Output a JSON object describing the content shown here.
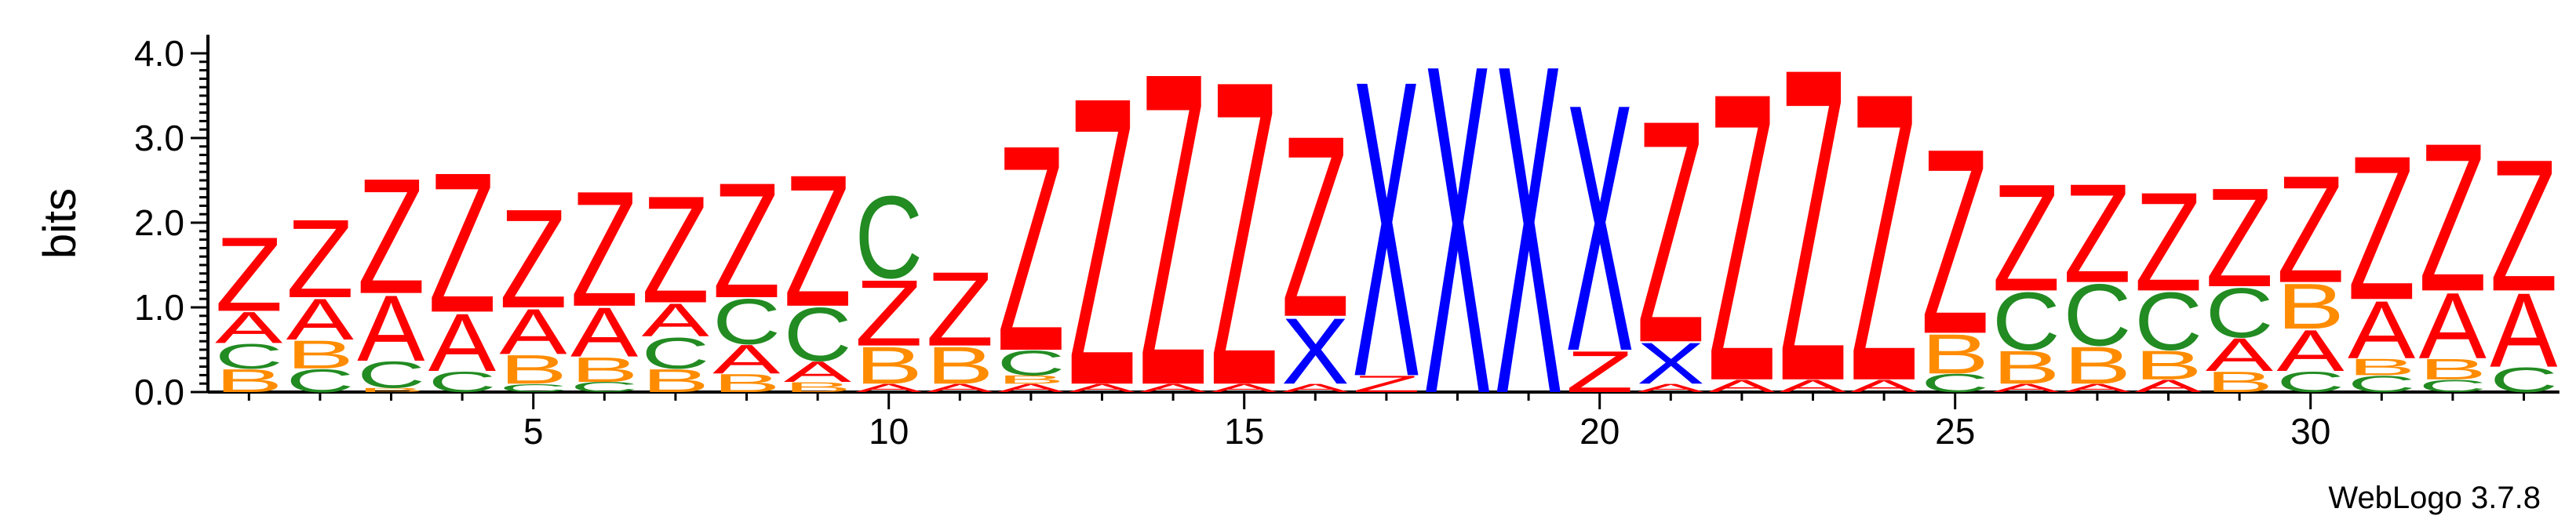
{
  "colors": {
    "A": "#ff0000",
    "Z": "#ff0000",
    "B": "#ff8c00",
    "C": "#228b22",
    "X": "#0000ff"
  },
  "credit": "WebLogo 3.7.8",
  "chart_data": {
    "type": "sequence-logo",
    "ylabel": "bits",
    "ylim": [
      0,
      4.2
    ],
    "y_ticks": [
      "0.0",
      "1.0",
      "2.0",
      "3.0",
      "4.0"
    ],
    "x_tick_labels": [
      "5",
      "10",
      "15",
      "20",
      "25",
      "30"
    ],
    "positions": [
      {
        "pos": 1,
        "stack": [
          [
            "B",
            0.28
          ],
          [
            "C",
            0.3
          ],
          [
            "A",
            0.38
          ],
          [
            "Z",
            0.9
          ]
        ]
      },
      {
        "pos": 2,
        "stack": [
          [
            "C",
            0.28
          ],
          [
            "B",
            0.34
          ],
          [
            "A",
            0.5
          ],
          [
            "Z",
            0.95
          ]
        ]
      },
      {
        "pos": 3,
        "stack": [
          [
            "B",
            0.05
          ],
          [
            "C",
            0.32
          ],
          [
            "A",
            0.8
          ],
          [
            "Z",
            1.4
          ]
        ]
      },
      {
        "pos": 4,
        "stack": [
          [
            "C",
            0.25
          ],
          [
            "A",
            0.7
          ],
          [
            "Z",
            1.7
          ]
        ]
      },
      {
        "pos": 5,
        "stack": [
          [
            "C",
            0.1
          ],
          [
            "B",
            0.35
          ],
          [
            "A",
            0.55
          ],
          [
            "Z",
            1.2
          ]
        ]
      },
      {
        "pos": 6,
        "stack": [
          [
            "C",
            0.12
          ],
          [
            "B",
            0.3
          ],
          [
            "A",
            0.6
          ],
          [
            "Z",
            1.4
          ]
        ]
      },
      {
        "pos": 7,
        "stack": [
          [
            "B",
            0.28
          ],
          [
            "C",
            0.38
          ],
          [
            "A",
            0.4
          ],
          [
            "Z",
            1.3
          ]
        ]
      },
      {
        "pos": 8,
        "stack": [
          [
            "B",
            0.22
          ],
          [
            "A",
            0.35
          ],
          [
            "C",
            0.55
          ],
          [
            "Z",
            1.4
          ]
        ]
      },
      {
        "pos": 9,
        "stack": [
          [
            "B",
            0.12
          ],
          [
            "A",
            0.25
          ],
          [
            "C",
            0.65
          ],
          [
            "Z",
            1.6
          ]
        ]
      },
      {
        "pos": 10,
        "stack": [
          [
            "A",
            0.1
          ],
          [
            "B",
            0.45
          ],
          [
            "Z",
            0.8
          ],
          [
            "C",
            1.0
          ]
        ]
      },
      {
        "pos": 11,
        "stack": [
          [
            "A",
            0.1
          ],
          [
            "B",
            0.45
          ],
          [
            "Z",
            0.9
          ]
        ]
      },
      {
        "pos": 12,
        "stack": [
          [
            "A",
            0.1
          ],
          [
            "B",
            0.1
          ],
          [
            "C",
            0.3
          ],
          [
            "Z",
            2.5
          ]
        ]
      },
      {
        "pos": 13,
        "stack": [
          [
            "A",
            0.1
          ],
          [
            "Z",
            3.5
          ]
        ]
      },
      {
        "pos": 14,
        "stack": [
          [
            "A",
            0.1
          ],
          [
            "Z",
            3.8
          ]
        ]
      },
      {
        "pos": 15,
        "stack": [
          [
            "A",
            0.1
          ],
          [
            "Z",
            3.7
          ]
        ]
      },
      {
        "pos": 16,
        "stack": [
          [
            "A",
            0.1
          ],
          [
            "X",
            0.8
          ],
          [
            "Z",
            2.2
          ]
        ]
      },
      {
        "pos": 17,
        "stack": [
          [
            "Z",
            0.2
          ],
          [
            "X",
            3.6
          ]
        ]
      },
      {
        "pos": 18,
        "stack": [
          [
            "X",
            4.0
          ]
        ]
      },
      {
        "pos": 19,
        "stack": [
          [
            "X",
            4.0
          ]
        ]
      },
      {
        "pos": 20,
        "stack": [
          [
            "Z",
            0.5
          ],
          [
            "X",
            3.0
          ]
        ]
      },
      {
        "pos": 21,
        "stack": [
          [
            "A",
            0.1
          ],
          [
            "X",
            0.5
          ],
          [
            "Z",
            2.7
          ]
        ]
      },
      {
        "pos": 22,
        "stack": [
          [
            "A",
            0.15
          ],
          [
            "Z",
            3.5
          ]
        ]
      },
      {
        "pos": 23,
        "stack": [
          [
            "A",
            0.15
          ],
          [
            "Z",
            3.8
          ]
        ]
      },
      {
        "pos": 24,
        "stack": [
          [
            "A",
            0.15
          ],
          [
            "Z",
            3.5
          ]
        ]
      },
      {
        "pos": 25,
        "stack": [
          [
            "C",
            0.22
          ],
          [
            "B",
            0.48
          ],
          [
            "Z",
            2.25
          ]
        ]
      },
      {
        "pos": 26,
        "stack": [
          [
            "A",
            0.1
          ],
          [
            "B",
            0.4
          ],
          [
            "C",
            0.7
          ],
          [
            "Z",
            1.3
          ]
        ]
      },
      {
        "pos": 27,
        "stack": [
          [
            "A",
            0.1
          ],
          [
            "B",
            0.45
          ],
          [
            "C",
            0.75
          ],
          [
            "Z",
            1.2
          ]
        ]
      },
      {
        "pos": 28,
        "stack": [
          [
            "A",
            0.15
          ],
          [
            "B",
            0.35
          ],
          [
            "C",
            0.7
          ],
          [
            "Z",
            1.2
          ]
        ]
      },
      {
        "pos": 29,
        "stack": [
          [
            "B",
            0.25
          ],
          [
            "A",
            0.4
          ],
          [
            "C",
            0.6
          ],
          [
            "Z",
            1.2
          ]
        ]
      },
      {
        "pos": 30,
        "stack": [
          [
            "C",
            0.25
          ],
          [
            "A",
            0.5
          ],
          [
            "B",
            0.55
          ],
          [
            "Z",
            1.3
          ]
        ]
      },
      {
        "pos": 31,
        "stack": [
          [
            "C",
            0.2
          ],
          [
            "B",
            0.2
          ],
          [
            "A",
            0.7
          ],
          [
            "Z",
            1.75
          ]
        ]
      },
      {
        "pos": 32,
        "stack": [
          [
            "C",
            0.15
          ],
          [
            "B",
            0.25
          ],
          [
            "A",
            0.8
          ],
          [
            "Z",
            1.8
          ]
        ]
      },
      {
        "pos": 33,
        "stack": [
          [
            "C",
            0.3
          ],
          [
            "A",
            0.9
          ],
          [
            "Z",
            1.6
          ]
        ]
      }
    ]
  }
}
